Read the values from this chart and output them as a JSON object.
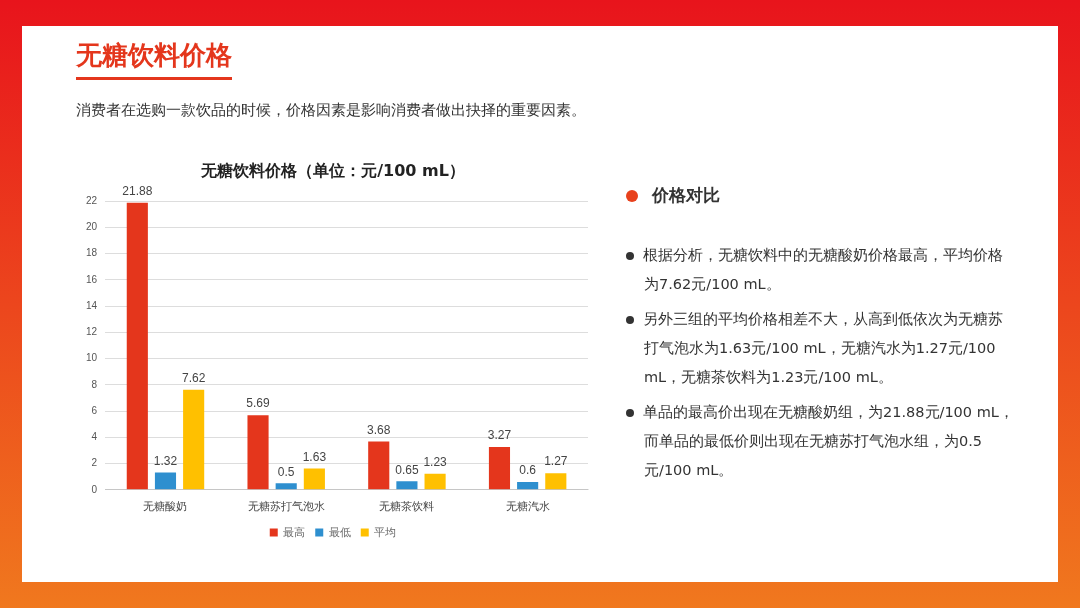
{
  "chart_data": {
    "type": "bar",
    "title": "无糖饮料价格（单位：元/100 mL）",
    "subtitle": "消费者在选购一款饮品的时候，价格因素是影响消费者做出抉择的重要因素。",
    "categories": [
      "无糖酸奶",
      "无糖苏打气泡水",
      "无糖茶饮料",
      "无糖汽水"
    ],
    "series": [
      {
        "name": "最高",
        "color": "#e4361c",
        "values": [
          21.88,
          5.69,
          3.68,
          3.27
        ]
      },
      {
        "name": "最低",
        "color": "#2e8fcf",
        "values": [
          1.32,
          0.5,
          0.65,
          0.6
        ]
      },
      {
        "name": "平均",
        "color": "#ffc000",
        "values": [
          7.62,
          1.63,
          1.23,
          1.27
        ]
      }
    ],
    "ylim": [
      0,
      22
    ],
    "yticks": [
      0,
      2,
      4,
      6,
      8,
      10,
      12,
      14,
      16,
      18,
      20,
      22
    ],
    "grid": "y",
    "legend": "bottom",
    "data_labels": true,
    "annotations": [
      "无糖饮料价格",
      "价格对比",
      "根据分析，无糖饮料中的无糖酸奶价格最高，平均价格为7.62元/100 mL。",
      "另外三组的平均价格相差不大，从高到低依次为无糖苏打气泡水为1.63元/100 mL，无糖汽水为1.27元/100 mL，无糖茶饮料为1.23元/100 mL。",
      "单品的最高价出现在无糖酸奶组，为21.88元/100 mL，而单品的最低价则出现在无糖苏打气泡水组，为0.5元/100 mL。"
    ]
  }
}
